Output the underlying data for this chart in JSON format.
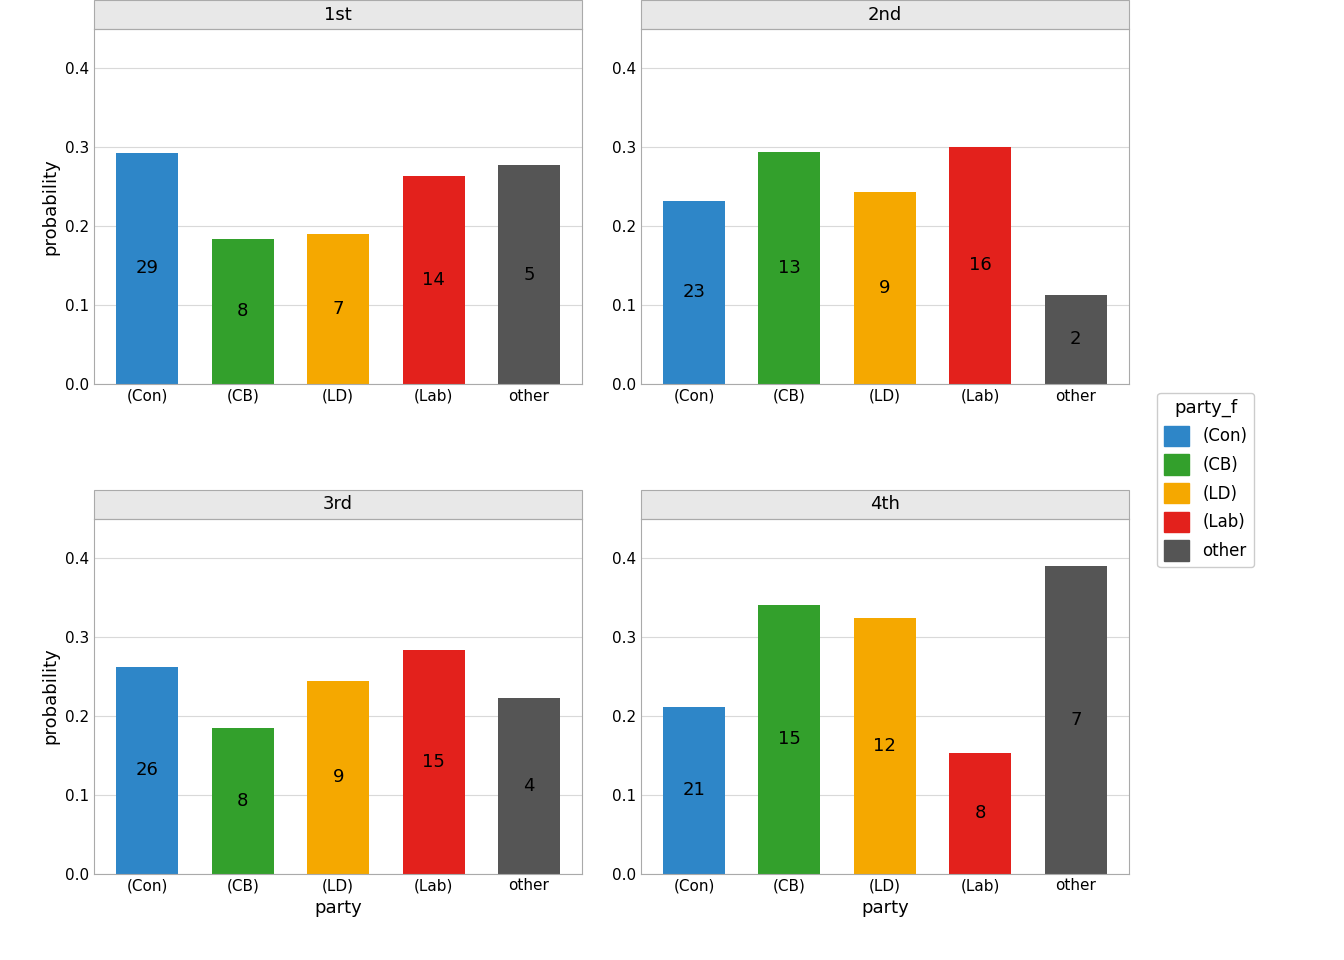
{
  "panels": [
    "1st",
    "2nd",
    "3rd",
    "4th"
  ],
  "parties": [
    "(Con)",
    "(CB)",
    "(LD)",
    "(Lab)",
    "other"
  ],
  "colors": [
    "#2e86c8",
    "#33a02c",
    "#f5a800",
    "#e3211c",
    "#555555"
  ],
  "values": {
    "1st": [
      0.293,
      0.184,
      0.19,
      0.263,
      0.277
    ],
    "2nd": [
      0.232,
      0.294,
      0.243,
      0.3,
      0.113
    ],
    "3rd": [
      0.262,
      0.184,
      0.244,
      0.284,
      0.222
    ],
    "4th": [
      0.211,
      0.341,
      0.324,
      0.153,
      0.39
    ]
  },
  "labels": {
    "1st": [
      29,
      8,
      7,
      14,
      5
    ],
    "2nd": [
      23,
      13,
      9,
      16,
      2
    ],
    "3rd": [
      26,
      8,
      9,
      15,
      4
    ],
    "4th": [
      21,
      15,
      12,
      8,
      7
    ]
  },
  "ylabel": "probability",
  "xlabel": "party",
  "ylim": [
    0,
    0.45
  ],
  "yticks": [
    0.0,
    0.1,
    0.2,
    0.3,
    0.4
  ],
  "legend_title": "party_f",
  "legend_labels": [
    "(Con)",
    "(CB)",
    "(LD)",
    "(Lab)",
    "other"
  ],
  "panel_title_fontsize": 13,
  "axis_label_fontsize": 13,
  "tick_fontsize": 11,
  "bar_label_fontsize": 13,
  "legend_fontsize": 12,
  "background_color": "#ffffff",
  "panel_title_bg": "#e8e8e8",
  "strip_line_color": "#a0a0a0",
  "grid_color": "#d9d9d9",
  "panel_border_color": "#aaaaaa"
}
